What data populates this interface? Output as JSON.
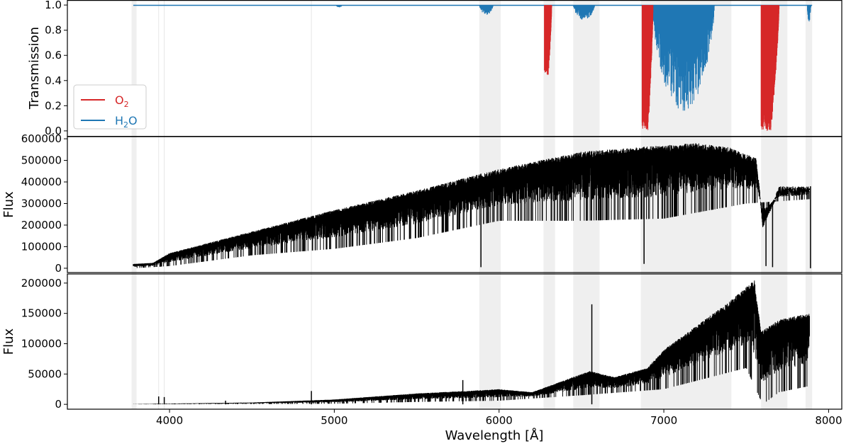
{
  "chart_data": [
    {
      "type": "line",
      "ylabel": "Transmission",
      "xlim": [
        3380,
        8080
      ],
      "ylim": [
        -0.04,
        1.04
      ],
      "yticks": [
        0.0,
        0.2,
        0.4,
        0.6,
        0.8,
        1.0
      ],
      "ytick_labels": [
        "0.0",
        "0.2",
        "0.4",
        "0.6",
        "0.8",
        "1.0"
      ],
      "legend": {
        "placement": "lower-left"
      },
      "series": [
        {
          "name": "O2",
          "name_base": "O",
          "name_sub": "2",
          "color": "#d62728",
          "bands": [
            {
              "start": 6275,
              "end": 6320,
              "min": 0.44
            },
            {
              "start": 6868,
              "end": 6935,
              "min": 0.0
            },
            {
              "start": 7590,
              "end": 7700,
              "min": 0.0
            }
          ]
        },
        {
          "name": "H2O",
          "name_base": "H",
          "name_sub": "2",
          "name_tail": "O",
          "color": "#1f77b4",
          "bands": [
            {
              "start": 5010,
              "end": 5060,
              "min": 0.98
            },
            {
              "start": 5880,
              "end": 5990,
              "min": 0.92
            },
            {
              "start": 6450,
              "end": 6620,
              "min": 0.88
            },
            {
              "start": 6930,
              "end": 7420,
              "min": 0.14
            },
            {
              "start": 7870,
              "end": 7900,
              "min": 0.86
            }
          ]
        }
      ]
    },
    {
      "type": "line",
      "ylabel": "Flux",
      "xlim": [
        3380,
        8080
      ],
      "ylim": [
        -20000,
        610000
      ],
      "yticks": [
        0,
        100000,
        200000,
        300000,
        400000,
        500000,
        600000
      ],
      "ytick_labels": [
        "0",
        "100000",
        "200000",
        "300000",
        "400000",
        "500000",
        "600000"
      ],
      "series": [
        {
          "color": "#000000",
          "upper_envelope": [
            [
              3780,
              20000
            ],
            [
              3900,
              25000
            ],
            [
              4000,
              70000
            ],
            [
              4500,
              170000
            ],
            [
              5000,
              270000
            ],
            [
              5500,
              360000
            ],
            [
              6000,
              460000
            ],
            [
              6500,
              540000
            ],
            [
              7000,
              570000
            ],
            [
              7200,
              580000
            ],
            [
              7400,
              560000
            ],
            [
              7560,
              510000
            ],
            [
              7580,
              380000
            ],
            [
              7600,
              200000
            ],
            [
              7700,
              380000
            ],
            [
              7880,
              380000
            ]
          ],
          "lower_envelope": [
            [
              3780,
              0
            ],
            [
              4000,
              10000
            ],
            [
              4500,
              60000
            ],
            [
              5000,
              90000
            ],
            [
              5500,
              140000
            ],
            [
              6000,
              220000
            ],
            [
              6500,
              220000
            ],
            [
              7000,
              230000
            ],
            [
              7500,
              300000
            ],
            [
              7880,
              320000
            ]
          ],
          "dips": [
            [
              5890,
              5000
            ],
            [
              6880,
              20000
            ],
            [
              7620,
              10000
            ],
            [
              7660,
              5000
            ],
            [
              7890,
              0
            ]
          ]
        }
      ]
    },
    {
      "type": "line",
      "xlabel": "Wavelength [Å]",
      "ylabel": "Flux",
      "xlim": [
        3380,
        8080
      ],
      "ylim": [
        -8000,
        215000
      ],
      "xticks": [
        4000,
        5000,
        6000,
        7000,
        8000
      ],
      "xtick_labels": [
        "4000",
        "5000",
        "6000",
        "7000",
        "8000"
      ],
      "yticks": [
        0,
        50000,
        100000,
        150000,
        200000
      ],
      "ytick_labels": [
        "0",
        "50000",
        "100000",
        "150000",
        "200000"
      ],
      "series": [
        {
          "color": "#000000",
          "upper_envelope": [
            [
              3780,
              500
            ],
            [
              4500,
              3000
            ],
            [
              5000,
              8000
            ],
            [
              5500,
              18000
            ],
            [
              5800,
              22000
            ],
            [
              6000,
              25000
            ],
            [
              6200,
              20000
            ],
            [
              6400,
              40000
            ],
            [
              6550,
              55000
            ],
            [
              6700,
              45000
            ],
            [
              6900,
              60000
            ],
            [
              7000,
              90000
            ],
            [
              7200,
              130000
            ],
            [
              7400,
              170000
            ],
            [
              7550,
              205000
            ],
            [
              7590,
              120000
            ],
            [
              7700,
              140000
            ],
            [
              7880,
              150000
            ]
          ],
          "lower_envelope": [
            [
              3780,
              0
            ],
            [
              5000,
              1000
            ],
            [
              5500,
              4000
            ],
            [
              6000,
              6000
            ],
            [
              6500,
              15000
            ],
            [
              7000,
              25000
            ],
            [
              7500,
              60000
            ],
            [
              7600,
              0
            ],
            [
              7700,
              20000
            ],
            [
              7880,
              30000
            ]
          ],
          "spikes": [
            [
              3934,
              13000
            ],
            [
              3968,
              12000
            ],
            [
              4340,
              6000
            ],
            [
              4861,
              22000
            ],
            [
              5780,
              40000
            ],
            [
              6563,
              165000
            ]
          ]
        }
      ]
    }
  ],
  "shaded_regions": [
    [
      3770,
      3800
    ],
    [
      5880,
      6010
    ],
    [
      6270,
      6340
    ],
    [
      6450,
      6610
    ],
    [
      6860,
      7410
    ],
    [
      7590,
      7750
    ],
    [
      7860,
      7900
    ]
  ],
  "faint_lines": [
    3934,
    3968,
    4861
  ]
}
